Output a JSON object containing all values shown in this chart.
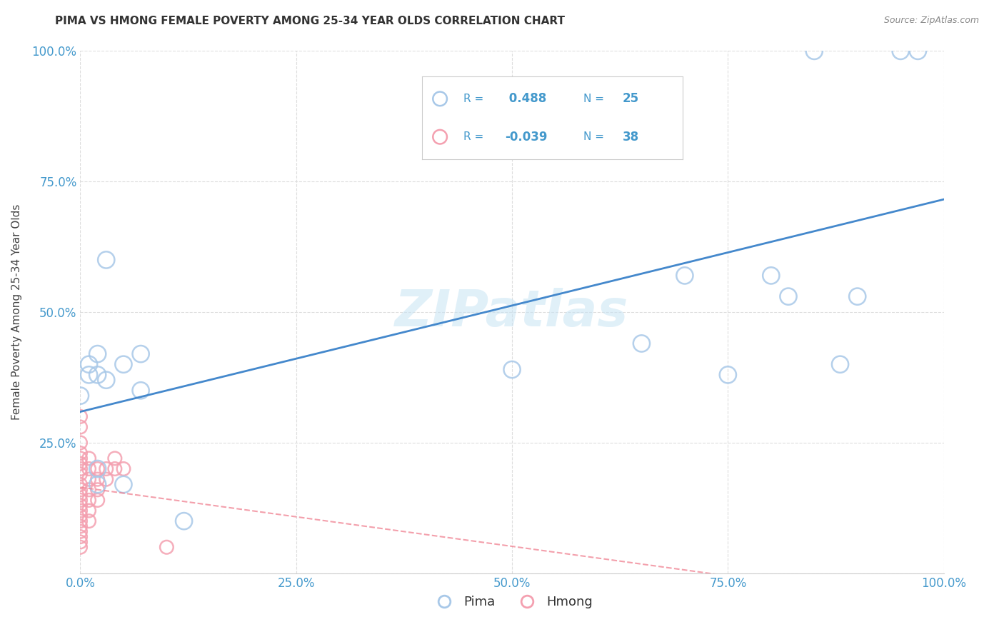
{
  "title": "PIMA VS HMONG FEMALE POVERTY AMONG 25-34 YEAR OLDS CORRELATION CHART",
  "source": "Source: ZipAtlas.com",
  "xlabel": "",
  "ylabel": "Female Poverty Among 25-34 Year Olds",
  "background_color": "#ffffff",
  "watermark": "ZIPatlas",
  "pima_R": 0.488,
  "pima_N": 25,
  "hmong_R": -0.039,
  "hmong_N": 38,
  "pima_color": "#a8c8e8",
  "hmong_color": "#f4a0b0",
  "pima_edge_color": "#7aaed0",
  "hmong_edge_color": "#e07888",
  "pima_line_color": "#4488cc",
  "hmong_line_color": "#f08090",
  "pima_points_x": [
    0.0,
    0.01,
    0.01,
    0.02,
    0.02,
    0.02,
    0.02,
    0.03,
    0.03,
    0.05,
    0.05,
    0.07,
    0.07,
    0.12,
    0.5,
    0.65,
    0.7,
    0.75,
    0.8,
    0.82,
    0.85,
    0.88,
    0.9,
    0.95,
    0.97
  ],
  "pima_points_y": [
    0.34,
    0.4,
    0.38,
    0.42,
    0.38,
    0.2,
    0.17,
    0.6,
    0.37,
    0.4,
    0.17,
    0.42,
    0.35,
    0.1,
    0.39,
    0.44,
    0.57,
    0.38,
    0.57,
    0.53,
    1.0,
    0.4,
    0.53,
    1.0,
    1.0
  ],
  "hmong_points_x": [
    0.0,
    0.0,
    0.0,
    0.0,
    0.0,
    0.0,
    0.0,
    0.0,
    0.0,
    0.0,
    0.0,
    0.0,
    0.0,
    0.0,
    0.0,
    0.0,
    0.0,
    0.0,
    0.0,
    0.0,
    0.0,
    0.01,
    0.01,
    0.01,
    0.01,
    0.01,
    0.01,
    0.01,
    0.02,
    0.02,
    0.02,
    0.02,
    0.03,
    0.03,
    0.04,
    0.04,
    0.05,
    0.1
  ],
  "hmong_points_y": [
    0.3,
    0.28,
    0.25,
    0.23,
    0.22,
    0.21,
    0.2,
    0.19,
    0.17,
    0.16,
    0.15,
    0.14,
    0.13,
    0.12,
    0.11,
    0.1,
    0.09,
    0.08,
    0.07,
    0.06,
    0.05,
    0.22,
    0.2,
    0.18,
    0.16,
    0.14,
    0.12,
    0.1,
    0.2,
    0.18,
    0.16,
    0.14,
    0.2,
    0.18,
    0.22,
    0.2,
    0.2,
    0.05
  ],
  "xlim": [
    0.0,
    1.0
  ],
  "ylim": [
    0.0,
    1.0
  ],
  "xticks": [
    0.0,
    0.25,
    0.5,
    0.75,
    1.0
  ],
  "yticks": [
    0.0,
    0.25,
    0.5,
    0.75,
    1.0
  ],
  "xticklabels": [
    "0.0%",
    "25.0%",
    "50.0%",
    "75.0%",
    "100.0%"
  ],
  "yticklabels": [
    "",
    "25.0%",
    "50.0%",
    "75.0%",
    "100.0%"
  ],
  "grid_color": "#dddddd"
}
